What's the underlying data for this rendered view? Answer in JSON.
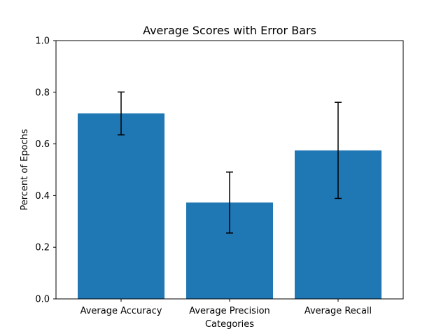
{
  "chart_data": {
    "type": "bar",
    "title": "Average Scores with Error Bars",
    "xlabel": "Categories",
    "ylabel": "Percent of Epochs",
    "categories": [
      "Average Accuracy",
      "Average Precision",
      "Average Recall"
    ],
    "values": [
      0.718,
      0.373,
      0.575
    ],
    "errors": [
      0.083,
      0.118,
      0.186
    ],
    "ylim": [
      0,
      1.0
    ],
    "yticks": [
      "0.0",
      "0.2",
      "0.4",
      "0.6",
      "0.8",
      "1.0"
    ],
    "grid": false,
    "bar_color": "#1f77b4",
    "error_color": "#000000"
  }
}
